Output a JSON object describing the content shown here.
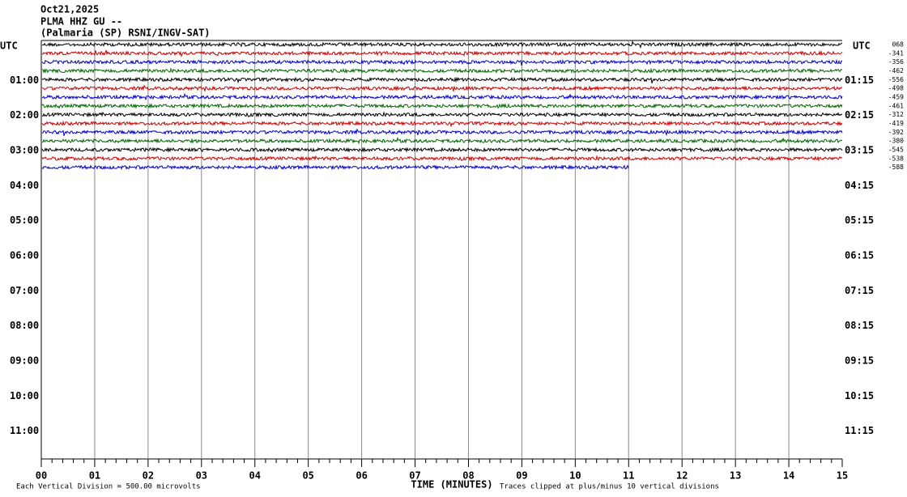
{
  "header": {
    "date": "Oct21,2025",
    "station": "PLMA HHZ GU --",
    "location": "(Palmaria (SP) RSNI/INGV-SAT)"
  },
  "left_axis_label": "UTC",
  "right_axis_label": "UTC",
  "left_hours": [
    "01:00",
    "02:00",
    "03:00",
    "04:00",
    "05:00",
    "06:00",
    "07:00",
    "08:00",
    "09:00",
    "10:00",
    "11:00"
  ],
  "right_hours": [
    "01:15",
    "02:15",
    "03:15",
    "04:15",
    "05:15",
    "06:15",
    "07:15",
    "08:15",
    "09:15",
    "10:15",
    "11:15"
  ],
  "x_axis": {
    "label": "TIME (MINUTES)",
    "ticks": [
      "00",
      "01",
      "02",
      "03",
      "04",
      "05",
      "06",
      "07",
      "08",
      "09",
      "10",
      "11",
      "12",
      "13",
      "14",
      "15"
    ]
  },
  "footer": {
    "left": "Each Vertical Division =  500.00 microvolts",
    "right": "Traces clipped at plus/minus 10 vertical divisions"
  },
  "traces": [
    {
      "color": "#000000",
      "label": "068"
    },
    {
      "color": "#cc0000",
      "label": "-341"
    },
    {
      "color": "#0000cc",
      "label": "-356"
    },
    {
      "color": "#006600",
      "label": "-462"
    },
    {
      "color": "#000000",
      "label": "-556"
    },
    {
      "color": "#cc0000",
      "label": "-498"
    },
    {
      "color": "#0000cc",
      "label": "-459"
    },
    {
      "color": "#006600",
      "label": "-461"
    },
    {
      "color": "#000000",
      "label": "-312"
    },
    {
      "color": "#cc0000",
      "label": "-419"
    },
    {
      "color": "#0000cc",
      "label": "-392"
    },
    {
      "color": "#006600",
      "label": "-380"
    },
    {
      "color": "#000000",
      "label": "-545"
    },
    {
      "color": "#cc0000",
      "label": "-538"
    },
    {
      "color": "#0000cc",
      "label": "-588"
    }
  ],
  "last_trace_end_minute": 11
}
